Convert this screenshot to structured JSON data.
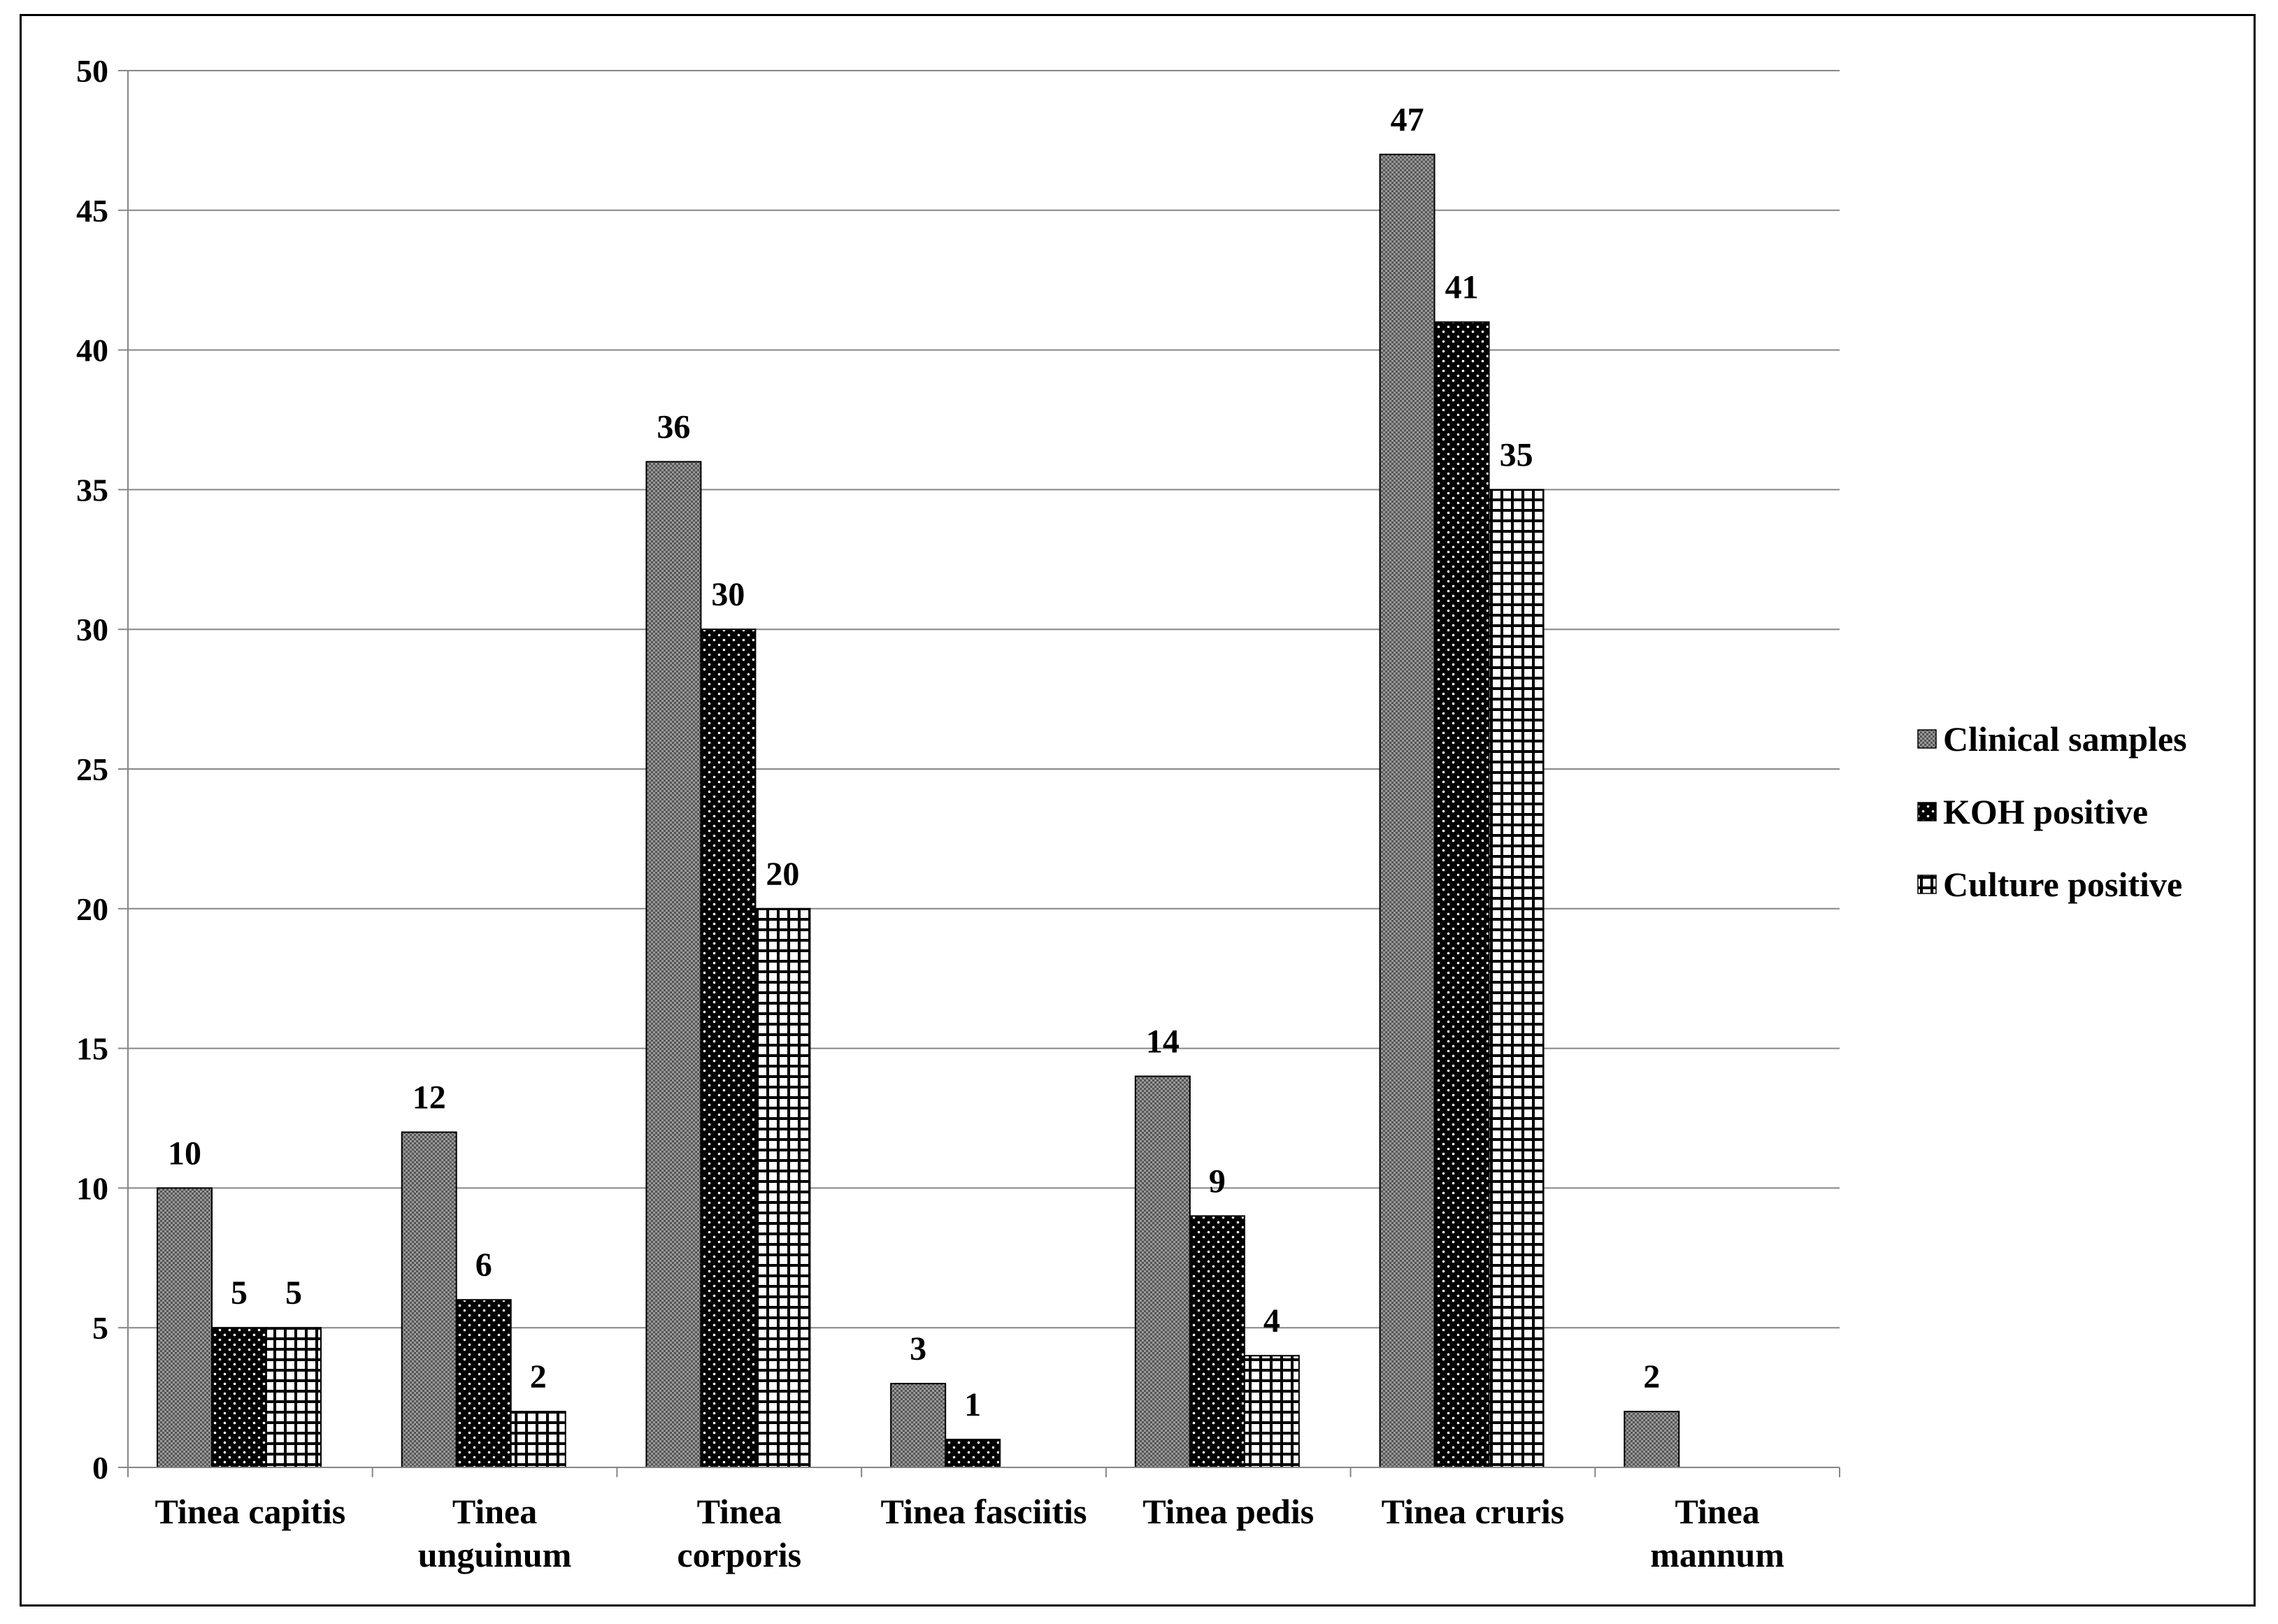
{
  "chart_data": {
    "type": "bar",
    "categories": [
      [
        "Tinea capitis"
      ],
      [
        "Tinea",
        "unguinum"
      ],
      [
        "Tinea",
        "corporis"
      ],
      [
        "Tinea fasciitis"
      ],
      [
        "Tinea pedis"
      ],
      [
        "Tinea cruris"
      ],
      [
        "Tinea",
        "mannum"
      ]
    ],
    "series": [
      {
        "name": "Clinical samples",
        "values": [
          10,
          12,
          36,
          3,
          14,
          47,
          2
        ],
        "pattern": "checker"
      },
      {
        "name": "KOH positive",
        "values": [
          5,
          6,
          30,
          1,
          9,
          41,
          null
        ],
        "pattern": "dots"
      },
      {
        "name": "Culture positive",
        "values": [
          5,
          2,
          20,
          null,
          4,
          35,
          null
        ],
        "pattern": "grid"
      }
    ],
    "ylim": [
      0,
      50
    ],
    "yticks": [
      0,
      5,
      10,
      15,
      20,
      25,
      30,
      35,
      40,
      45,
      50
    ],
    "grid": true,
    "legend_position": "right",
    "colors": {
      "axis": "#868686",
      "grid": "#868686",
      "ink": "#000000",
      "bar_fill": "#ffffff"
    }
  }
}
